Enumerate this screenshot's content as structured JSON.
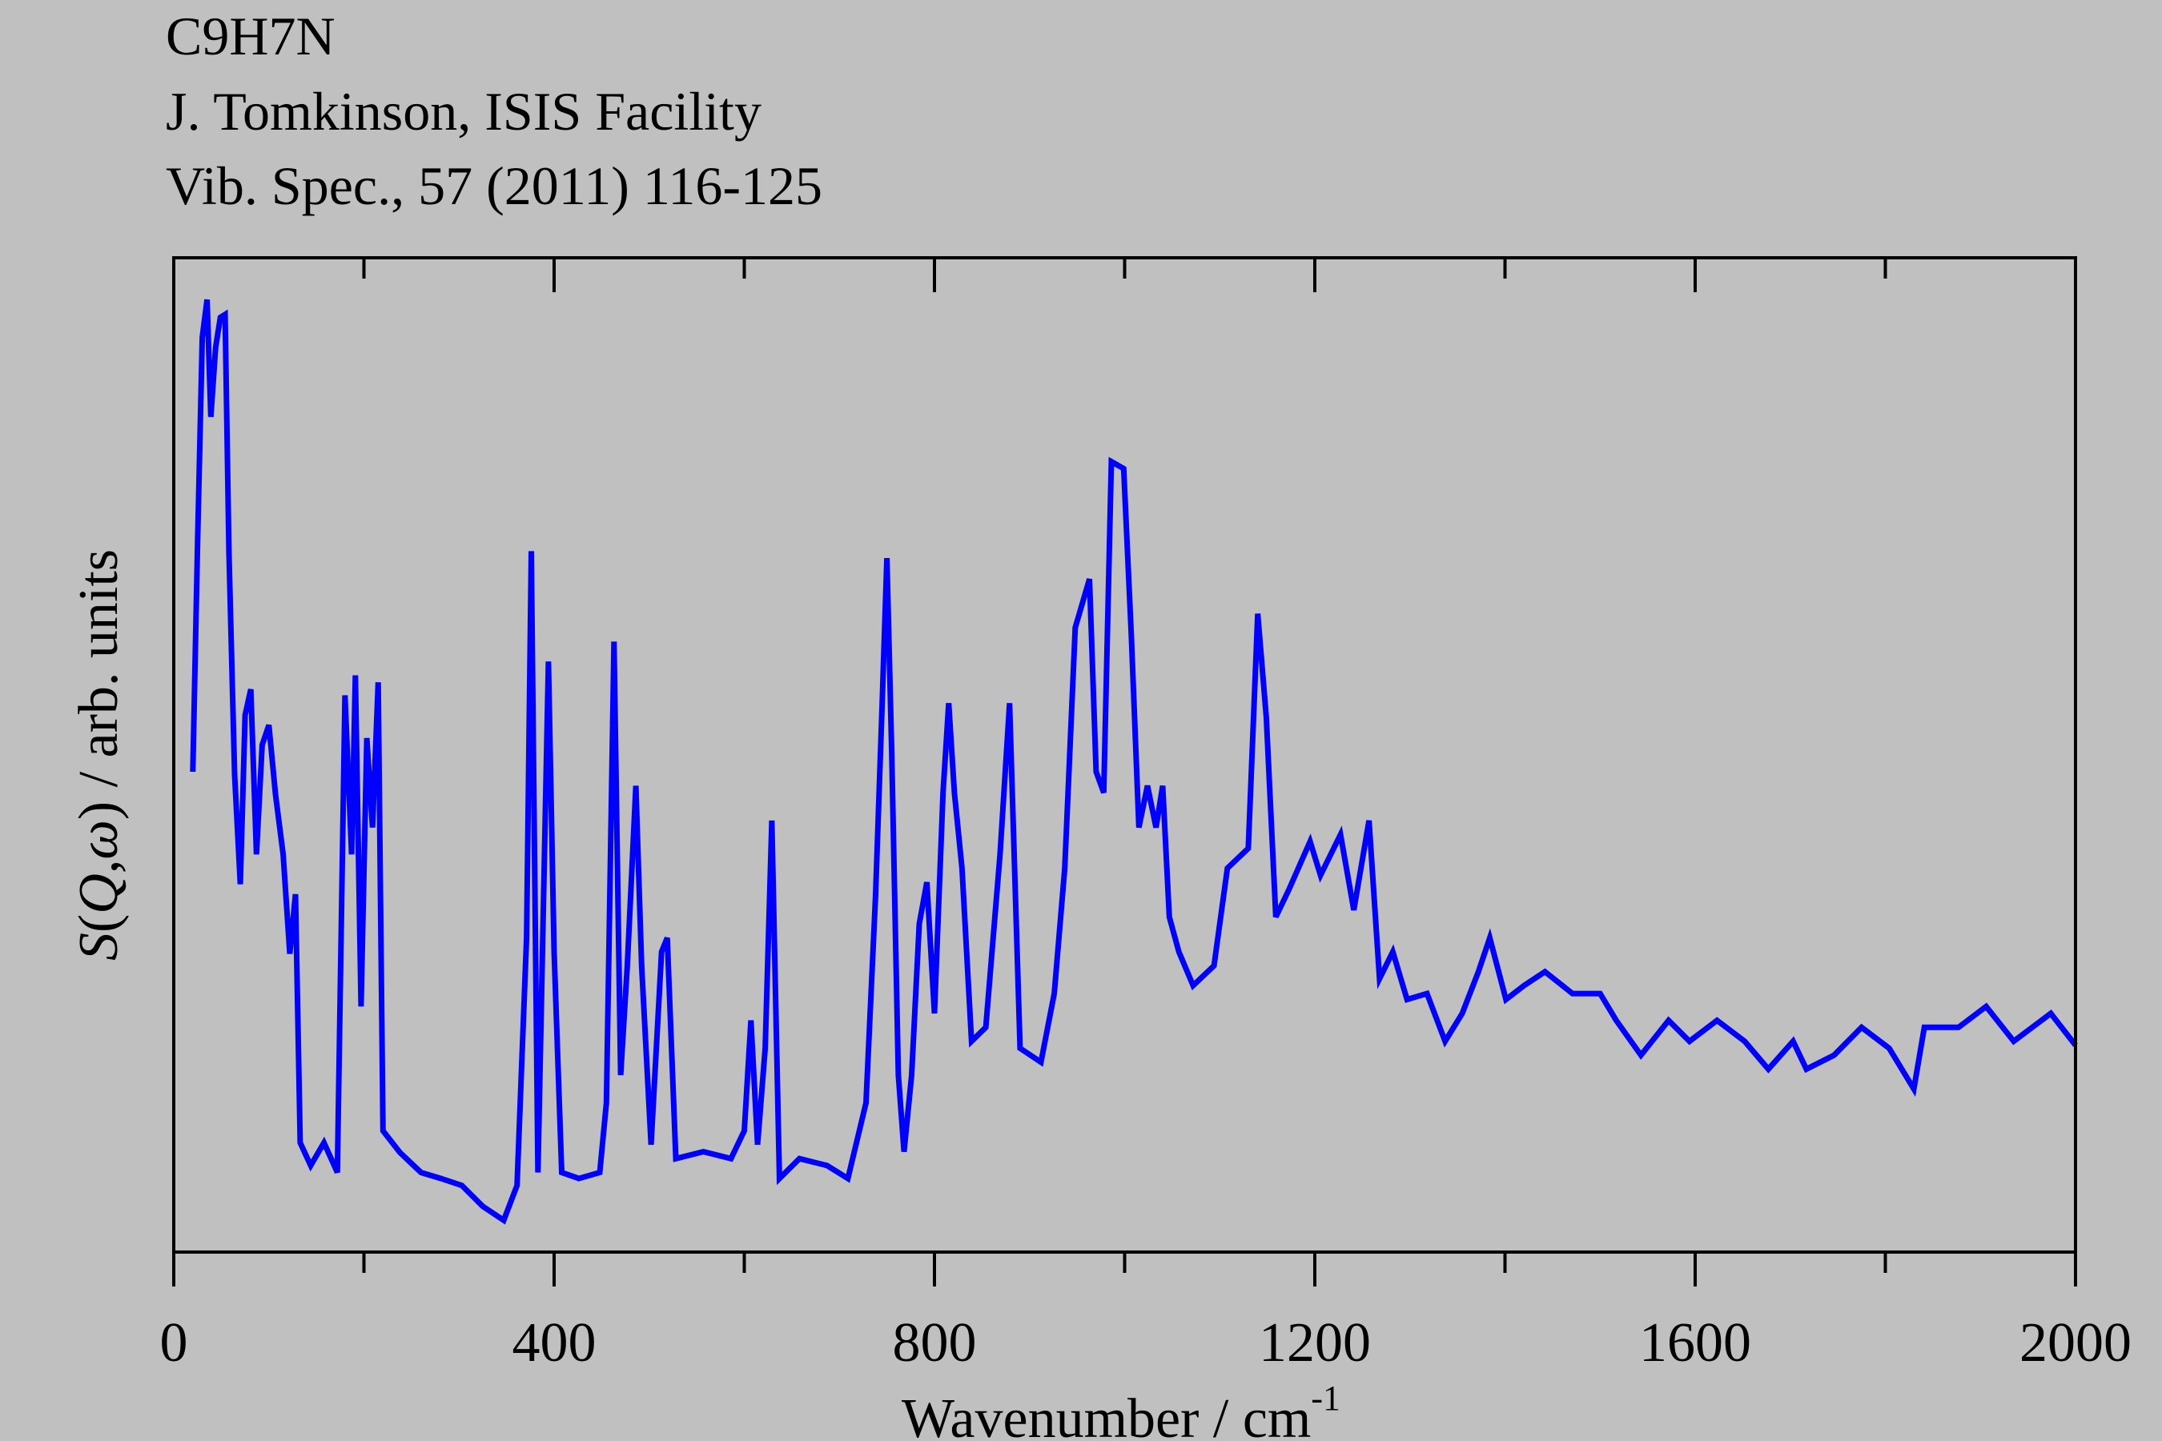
{
  "chart_data": {
    "type": "line",
    "title_lines": [
      "C9H7N",
      "J. Tomkinson, ISIS Facility",
      "Vib. Spec., 57 (2011) 116-125"
    ],
    "xlabel": "Wavenumber / cm",
    "xlabel_sup": "-1",
    "ylabel": [
      "S",
      "(",
      "Q",
      ",",
      "ω",
      ")",
      " / arb. units"
    ],
    "xlim": [
      0,
      2000
    ],
    "xticks": [
      0,
      400,
      800,
      1200,
      1600,
      2000
    ],
    "xminorticks": [
      200,
      600,
      1000,
      1400,
      1800
    ],
    "ylim": [
      0,
      100
    ],
    "grid": false,
    "series": [
      {
        "name": "C9H7N",
        "color": "#0000ff",
        "x": [
          20,
          25,
          30,
          35,
          39,
          44,
          49,
          54,
          58,
          64,
          70,
          75,
          81,
          87,
          93,
          100,
          107,
          115,
          122,
          128,
          133,
          144,
          158,
          172,
          180,
          187,
          191,
          197,
          203,
          209,
          215,
          220,
          238,
          260,
          281,
          303,
          325,
          347,
          361,
          371,
          376,
          383,
          394,
          400,
          408,
          426,
          448,
          455,
          463,
          470,
          477,
          486,
          492,
          502,
          513,
          519,
          528,
          557,
          586,
          600,
          607,
          614,
          622,
          629,
          637,
          658,
          687,
          709,
          728,
          738,
          745,
          750,
          755,
          762,
          768,
          776,
          784,
          792,
          800,
          809,
          815,
          821,
          829,
          839,
          854,
          869,
          879,
          890,
          912,
          926,
          937,
          948,
          963,
          970,
          978,
          986,
          999,
          1007,
          1015,
          1024,
          1033,
          1040,
          1047,
          1057,
          1072,
          1094,
          1108,
          1130,
          1140,
          1149,
          1159,
          1173,
          1195,
          1206,
          1227,
          1241,
          1257,
          1268,
          1282,
          1297,
          1318,
          1337,
          1355,
          1372,
          1384,
          1401,
          1420,
          1442,
          1471,
          1500,
          1517,
          1543,
          1572,
          1594,
          1623,
          1652,
          1677,
          1703,
          1717,
          1746,
          1775,
          1804,
          1830,
          1841,
          1877,
          1906,
          1935,
          1974,
          2000
        ],
        "values": [
          48.3,
          71.2,
          92,
          95.8,
          84,
          91,
          94,
          94.3,
          70.5,
          48,
          37,
          54,
          56.6,
          40,
          51,
          53,
          46,
          40,
          30,
          36,
          11,
          8.7,
          11,
          8,
          56,
          40,
          58,
          24.7,
          51.7,
          42.7,
          57.3,
          12.2,
          10,
          8,
          7.4,
          6.7,
          4.6,
          3.2,
          6.7,
          31.6,
          70.5,
          8,
          59.4,
          30.2,
          8,
          7.4,
          8,
          15,
          61.4,
          17.8,
          28.8,
          46.9,
          28.8,
          10.8,
          30.2,
          31.6,
          9.4,
          10.1,
          9.4,
          12.2,
          23.3,
          10.8,
          20.5,
          43.4,
          7.4,
          9.4,
          8.7,
          7.4,
          15,
          35.8,
          55.2,
          69.8,
          50.3,
          17.8,
          10.1,
          17.8,
          33,
          37.2,
          24,
          46.2,
          55.2,
          46.2,
          38.6,
          21.2,
          22.6,
          40,
          55.2,
          20.5,
          19.1,
          26,
          38.6,
          62.8,
          67.7,
          48.3,
          46.2,
          79.5,
          78.8,
          62.1,
          42.7,
          46.9,
          42.7,
          46.9,
          33.7,
          30.2,
          26.8,
          28.8,
          38.6,
          40.6,
          64.2,
          53.8,
          33.7,
          36.5,
          41.3,
          37.9,
          42,
          34.4,
          43.4,
          27.5,
          30.2,
          25.4,
          26,
          21.2,
          24,
          28.2,
          31.6,
          25.4,
          26.8,
          28.2,
          26,
          26,
          23.3,
          19.8,
          23.3,
          21.2,
          23.3,
          21.2,
          18.4,
          21.2,
          18.4,
          19.8,
          22.6,
          20.5,
          16.4,
          22.6,
          22.6,
          24.7,
          21.2,
          24,
          20.8
        ]
      }
    ]
  }
}
